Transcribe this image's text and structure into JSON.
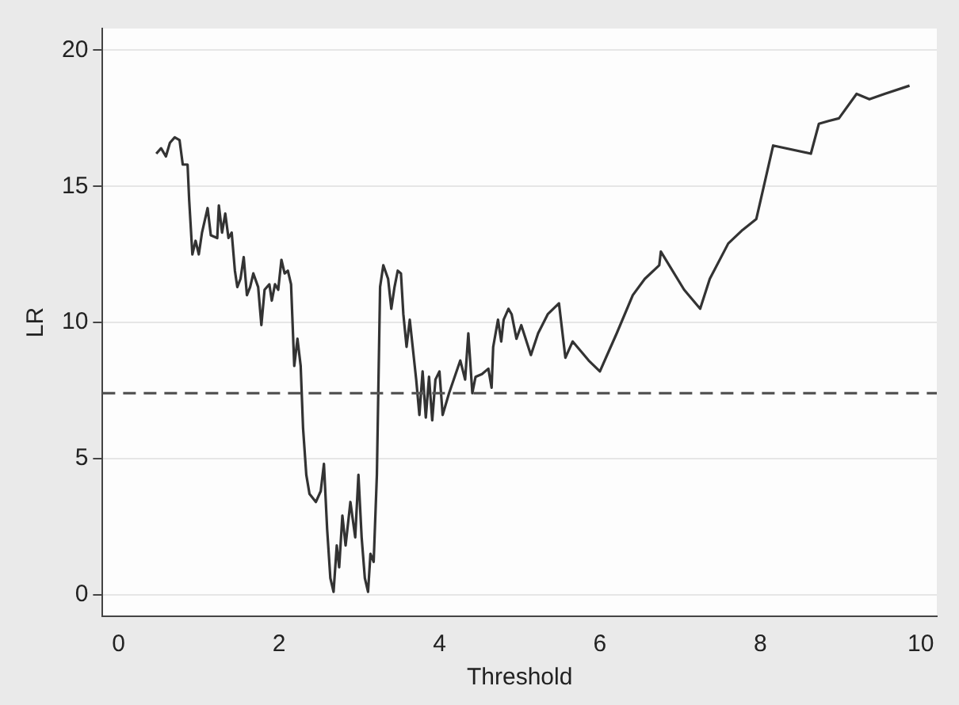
{
  "chart_data": {
    "type": "line",
    "xlabel": "Threshold",
    "ylabel": "LR",
    "x": [
      0.47,
      0.53,
      0.59,
      0.64,
      0.7,
      0.76,
      0.8,
      0.86,
      0.88,
      0.9,
      0.92,
      0.96,
      1.0,
      1.04,
      1.11,
      1.15,
      1.23,
      1.25,
      1.29,
      1.33,
      1.37,
      1.41,
      1.45,
      1.48,
      1.52,
      1.56,
      1.6,
      1.64,
      1.68,
      1.74,
      1.78,
      1.82,
      1.88,
      1.91,
      1.95,
      1.99,
      2.03,
      2.07,
      2.11,
      2.15,
      2.19,
      2.23,
      2.27,
      2.3,
      2.34,
      2.38,
      2.46,
      2.52,
      2.56,
      2.6,
      2.64,
      2.68,
      2.72,
      2.75,
      2.79,
      2.83,
      2.89,
      2.95,
      2.99,
      3.03,
      3.07,
      3.11,
      3.14,
      3.18,
      3.22,
      3.26,
      3.3,
      3.36,
      3.4,
      3.44,
      3.48,
      3.52,
      3.55,
      3.59,
      3.63,
      3.67,
      3.71,
      3.75,
      3.79,
      3.83,
      3.87,
      3.91,
      3.95,
      4.0,
      4.04,
      4.12,
      4.26,
      4.32,
      4.36,
      4.41,
      4.45,
      4.53,
      4.61,
      4.65,
      4.67,
      4.73,
      4.77,
      4.8,
      4.86,
      4.9,
      4.96,
      5.02,
      5.14,
      5.23,
      5.35,
      5.49,
      5.57,
      5.66,
      5.86,
      6.0,
      6.21,
      6.41,
      6.56,
      6.74,
      6.76,
      7.05,
      7.25,
      7.37,
      7.6,
      7.78,
      7.95,
      8.16,
      8.63,
      8.73,
      8.85,
      8.98,
      9.2,
      9.36,
      9.55,
      9.86
    ],
    "series": [
      {
        "color": "#333333",
        "values": [
          16.2,
          16.4,
          16.1,
          16.6,
          16.8,
          16.7,
          15.8,
          15.8,
          14.5,
          13.5,
          12.5,
          13.0,
          12.5,
          13.3,
          14.2,
          13.2,
          13.1,
          14.3,
          13.3,
          14.0,
          13.1,
          13.3,
          11.9,
          11.3,
          11.6,
          12.4,
          11.0,
          11.3,
          11.8,
          11.3,
          9.9,
          11.2,
          11.4,
          10.8,
          11.4,
          11.2,
          12.3,
          11.8,
          11.9,
          11.4,
          8.4,
          9.4,
          8.4,
          6.1,
          4.4,
          3.7,
          3.4,
          3.8,
          4.8,
          2.4,
          0.6,
          0.1,
          1.8,
          1.0,
          2.9,
          1.8,
          3.4,
          2.1,
          4.4,
          2.1,
          0.6,
          0.1,
          1.5,
          1.2,
          4.4,
          11.3,
          12.1,
          11.6,
          10.5,
          11.3,
          11.9,
          11.8,
          10.3,
          9.1,
          10.1,
          9.0,
          7.9,
          6.6,
          8.2,
          6.5,
          8.0,
          6.4,
          7.9,
          8.2,
          6.6,
          7.4,
          8.6,
          7.9,
          9.6,
          7.4,
          8.0,
          8.1,
          8.3,
          7.6,
          9.1,
          10.1,
          9.3,
          10.1,
          10.5,
          10.3,
          9.4,
          9.9,
          8.8,
          9.6,
          10.3,
          10.7,
          8.7,
          9.3,
          8.6,
          8.2,
          9.6,
          11.0,
          11.6,
          12.1,
          12.6,
          11.2,
          10.5,
          11.6,
          12.9,
          13.4,
          13.8,
          16.5,
          16.2,
          17.3,
          17.4,
          17.5,
          18.4,
          18.2,
          18.4,
          18.7
        ]
      }
    ],
    "xlim": [
      -0.2,
      10.2
    ],
    "xticks": [
      0,
      2,
      4,
      6,
      8,
      10
    ],
    "ylim": [
      -0.8,
      20.8
    ],
    "yticks": [
      0,
      5,
      10,
      15,
      20
    ],
    "grid": "y",
    "marker": "none",
    "line_style": "solid",
    "ref_lines": [
      {
        "axis": "y",
        "value": 7.4,
        "color": "#555555",
        "line_style": "dashed"
      }
    ]
  }
}
